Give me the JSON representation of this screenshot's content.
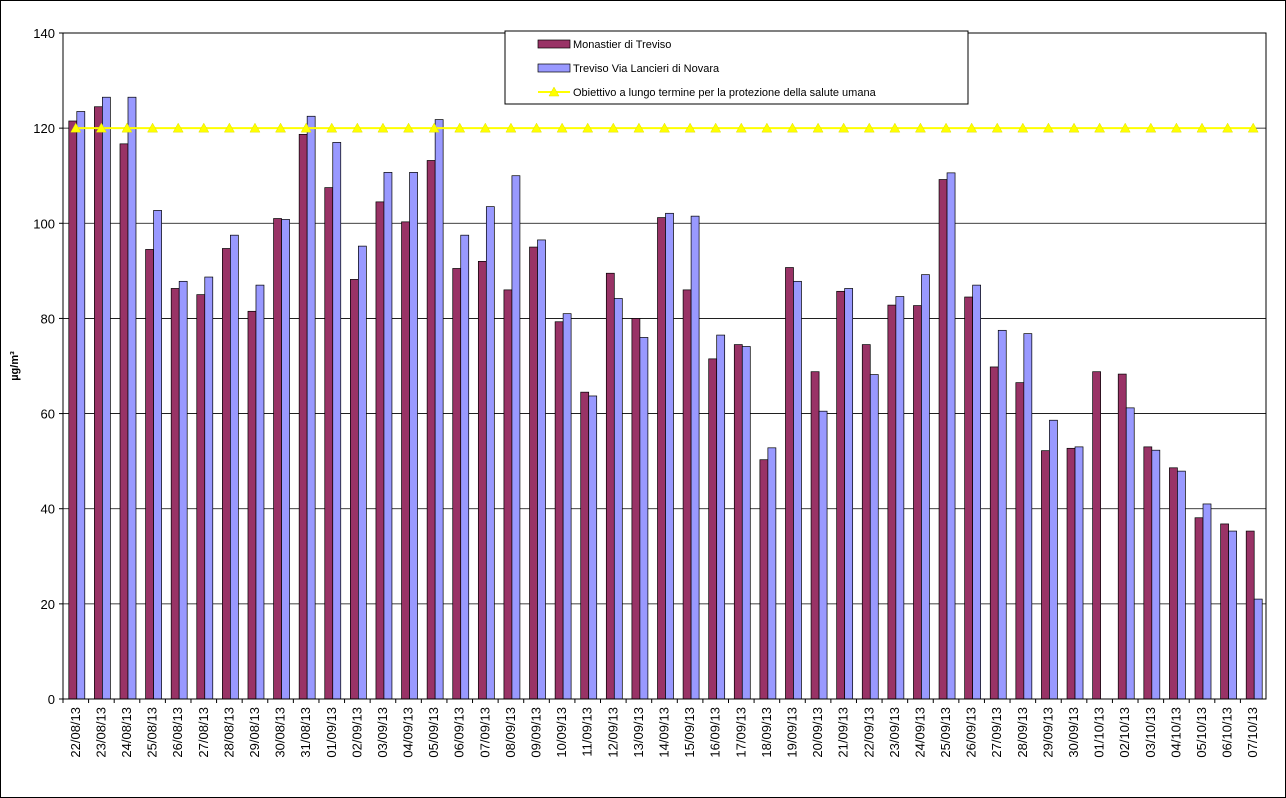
{
  "chart_data": {
    "type": "bar",
    "y_label": "µg/m³",
    "categories": [
      "22/08/13",
      "23/08/13",
      "24/08/13",
      "25/08/13",
      "26/08/13",
      "27/08/13",
      "28/08/13",
      "29/08/13",
      "30/08/13",
      "31/08/13",
      "01/09/13",
      "02/09/13",
      "03/09/13",
      "04/09/13",
      "05/09/13",
      "06/09/13",
      "07/09/13",
      "08/09/13",
      "09/09/13",
      "10/09/13",
      "11/09/13",
      "12/09/13",
      "13/09/13",
      "14/09/13",
      "15/09/13",
      "16/09/13",
      "17/09/13",
      "18/09/13",
      "19/09/13",
      "20/09/13",
      "21/09/13",
      "22/09/13",
      "23/09/13",
      "24/09/13",
      "25/09/13",
      "26/09/13",
      "27/09/13",
      "28/09/13",
      "29/09/13",
      "30/09/13",
      "01/10/13",
      "02/10/13",
      "03/10/13",
      "04/10/13",
      "05/10/13",
      "06/10/13",
      "07/10/13"
    ],
    "series": [
      {
        "name": "Monastier di Treviso",
        "type": "bar",
        "color": "#993366",
        "values": [
          121.5,
          124.5,
          116.7,
          94.5,
          86.3,
          85,
          94.7,
          81.5,
          101,
          118.7,
          107.5,
          88.2,
          104.5,
          100.3,
          113.2,
          90.5,
          92,
          86,
          95,
          79.3,
          64.5,
          89.5,
          80,
          101.2,
          86,
          71.5,
          74.5,
          50.3,
          90.7,
          68.8,
          85.7,
          74.5,
          82.8,
          82.7,
          109.2,
          84.5,
          69.8,
          66.5,
          52.2,
          52.7,
          68.8,
          68.3,
          53,
          48.6,
          38.1,
          36.8,
          35.3
        ]
      },
      {
        "name": "Treviso Via Lancieri di Novara",
        "type": "bar",
        "color": "#9999FF",
        "values": [
          123.5,
          126.5,
          126.5,
          102.7,
          87.8,
          88.7,
          97.5,
          87,
          100.8,
          122.5,
          117,
          95.2,
          110.7,
          110.7,
          121.8,
          97.5,
          103.5,
          110,
          96.5,
          81,
          63.7,
          84.2,
          76,
          102.1,
          101.5,
          76.5,
          74.1,
          52.8,
          87.8,
          60.5,
          86.3,
          68.2,
          84.6,
          89.2,
          110.6,
          87,
          77.5,
          76.8,
          58.6,
          53,
          null,
          61.2,
          52.3,
          47.9,
          41,
          35.3,
          21
        ]
      },
      {
        "name": "Obiettivo a lungo termine per la protezione della salute umana",
        "type": "line",
        "color": "#FFFF00",
        "values": [
          120,
          120,
          120,
          120,
          120,
          120,
          120,
          120,
          120,
          120,
          120,
          120,
          120,
          120,
          120,
          120,
          120,
          120,
          120,
          120,
          120,
          120,
          120,
          120,
          120,
          120,
          120,
          120,
          120,
          120,
          120,
          120,
          120,
          120,
          120,
          120,
          120,
          120,
          120,
          120,
          120,
          120,
          120,
          120,
          120,
          120,
          120
        ]
      }
    ],
    "ylim": [
      0,
      140
    ],
    "yticks": [
      0,
      20,
      40,
      60,
      80,
      100,
      120,
      140
    ],
    "grid": true
  }
}
